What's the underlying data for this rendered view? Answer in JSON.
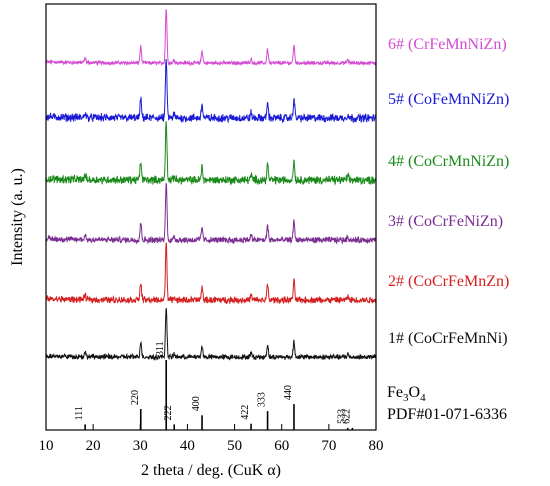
{
  "chart_data": {
    "type": "line",
    "xlabel": "2 theta / deg. (CuK α)",
    "ylabel": "Intensity (a. u.)",
    "xlim": [
      10,
      80
    ],
    "xticks": [
      10,
      20,
      30,
      40,
      50,
      60,
      70,
      80
    ],
    "grid": false,
    "legend": "inline-right",
    "main_peaks": [
      {
        "two_theta": 18.3,
        "height": 0.08
      },
      {
        "two_theta": 30.1,
        "height": 0.3
      },
      {
        "two_theta": 35.5,
        "height": 1.0
      },
      {
        "two_theta": 37.2,
        "height": 0.06
      },
      {
        "two_theta": 43.1,
        "height": 0.22
      },
      {
        "two_theta": 53.5,
        "height": 0.08
      },
      {
        "two_theta": 57.0,
        "height": 0.25
      },
      {
        "two_theta": 62.6,
        "height": 0.32
      },
      {
        "two_theta": 74.0,
        "height": 0.06
      }
    ],
    "series": [
      {
        "name": "6# (CrFeMnNiZn)",
        "color": "#d34bd3"
      },
      {
        "name": "5# (CoFeMnNiZn)",
        "color": "#1a1ad6"
      },
      {
        "name": "4# (CoCrMnNiZn)",
        "color": "#1a8a1a"
      },
      {
        "name": "3# (CoCrFeNiZn)",
        "color": "#7b2d92"
      },
      {
        "name": "2# (CoCrFeMnZn)",
        "color": "#d42020"
      },
      {
        "name": "1# (CoCrFeMnNi)",
        "color": "#111111"
      }
    ],
    "reference": {
      "name_prefix": "Fe",
      "name_sub1": "3",
      "name_mid": "O",
      "name_sub2": "4",
      "pdf": "PDF#01-071-6336",
      "peaks": [
        {
          "two_theta": 18.3,
          "hkl": "111",
          "height": 0.08
        },
        {
          "two_theta": 30.1,
          "hkl": "220",
          "height": 0.3
        },
        {
          "two_theta": 35.5,
          "hkl": "311",
          "height": 1.0
        },
        {
          "two_theta": 37.2,
          "hkl": "222",
          "height": 0.08
        },
        {
          "two_theta": 43.1,
          "hkl": "400",
          "height": 0.21
        },
        {
          "two_theta": 53.5,
          "hkl": "422",
          "height": 0.09
        },
        {
          "two_theta": 57.0,
          "hkl": "333",
          "height": 0.27
        },
        {
          "two_theta": 62.6,
          "hkl": "440",
          "height": 0.37
        },
        {
          "two_theta": 74.0,
          "hkl": "533",
          "height": 0.03
        },
        {
          "two_theta": 75.0,
          "hkl": "622",
          "height": 0.03
        }
      ]
    }
  }
}
